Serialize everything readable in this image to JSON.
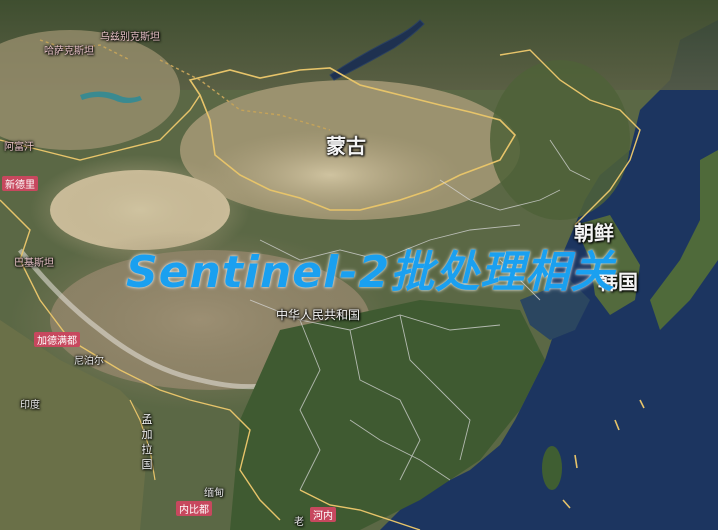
{
  "colors": {
    "ocean": "#1c3560",
    "land_green": "#4d6138",
    "desert": "#b9ad8c",
    "border": "#e7c46a",
    "province_border": "#d9d9d9",
    "title": "#1aa0f0",
    "capital_tag": "#c7485e"
  },
  "title": "Sentinel-2批处理相关",
  "labels": {
    "mongolia": "蒙古",
    "north_korea": "朝鲜",
    "south_korea": "韩国",
    "china": "中华人民共和国",
    "nepal": "尼泊尔",
    "india": "印度",
    "bangladesh": "孟加拉国",
    "myanmar": "缅甸",
    "laos": "老",
    "topleft_1": "哈萨克斯坦",
    "topleft_2": "乌兹别克斯坦",
    "left_1": "阿富汗",
    "left_2": "巴基斯坦"
  },
  "capital_tags": {
    "kathmandu": "加德满都",
    "naypyidaw": "内比都",
    "hanoi": "河内",
    "new_delhi": "新德里"
  },
  "icons": {
    "road": "dotted-road-line"
  }
}
